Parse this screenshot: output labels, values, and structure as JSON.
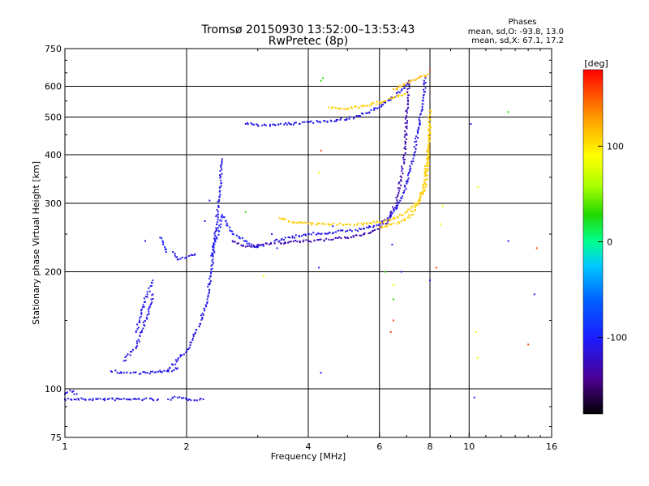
{
  "chart_data": {
    "type": "scatter",
    "title": "Tromsø 20150930 13:52:00–13:53:43",
    "subtitle": "RwPretec (8p)",
    "xlabel": "Frequency [MHz]",
    "ylabel": "Stationary phase Virtual Height [km]",
    "x_scale": "log",
    "y_scale": "log",
    "xlim": [
      1,
      16
    ],
    "ylim": [
      75,
      750
    ],
    "x_ticks": [
      1,
      2,
      4,
      6,
      8,
      10,
      16
    ],
    "x_tick_labels": [
      "1",
      "2",
      "4",
      "6",
      "8",
      "10",
      "16"
    ],
    "y_ticks": [
      75,
      100,
      200,
      300,
      400,
      500,
      600,
      750
    ],
    "y_tick_labels": [
      "75",
      "100",
      "200",
      "300",
      "400",
      "500",
      "600",
      "750"
    ],
    "grid": true,
    "phases_info": {
      "title": "Phases",
      "line_o": "mean, sd,O: -93.8, 13.0",
      "line_x": "mean, sd,X: 67.1, 17.2"
    },
    "colorbar": {
      "label": "[deg]",
      "range": [
        -180,
        180
      ],
      "ticks": [
        100,
        0,
        -100
      ],
      "tick_labels": [
        "100",
        "0",
        "-100"
      ]
    },
    "traces": [
      {
        "phase": -110,
        "points": [
          [
            1.0,
            94
          ],
          [
            1.2,
            94
          ],
          [
            1.5,
            94
          ],
          [
            1.7,
            94
          ]
        ]
      },
      {
        "phase": -110,
        "points": [
          [
            1.8,
            94
          ],
          [
            1.9,
            95
          ],
          [
            2.0,
            94
          ],
          [
            2.2,
            94
          ]
        ]
      },
      {
        "phase": -110,
        "points": [
          [
            1.0,
            97
          ],
          [
            1.03,
            99
          ],
          [
            1.07,
            97
          ]
        ]
      },
      {
        "phase": -110,
        "points": [
          [
            1.3,
            111
          ],
          [
            1.4,
            110
          ],
          [
            1.6,
            110
          ],
          [
            1.8,
            111
          ],
          [
            1.9,
            113
          ]
        ]
      },
      {
        "phase": -110,
        "points": [
          [
            1.4,
            118
          ],
          [
            1.5,
            128
          ],
          [
            1.55,
            140
          ],
          [
            1.6,
            155
          ],
          [
            1.65,
            175
          ]
        ]
      },
      {
        "phase": -105,
        "points": [
          [
            1.5,
            140
          ],
          [
            1.55,
            160
          ],
          [
            1.6,
            175
          ],
          [
            1.65,
            190
          ]
        ]
      },
      {
        "phase": -110,
        "points": [
          [
            1.85,
            225
          ],
          [
            1.9,
            215
          ],
          [
            2.0,
            218
          ],
          [
            2.1,
            222
          ]
        ]
      },
      {
        "phase": -100,
        "points": [
          [
            1.72,
            245
          ],
          [
            1.75,
            235
          ],
          [
            1.78,
            225
          ]
        ]
      },
      {
        "phase": -110,
        "points": [
          [
            1.8,
            112
          ],
          [
            2.0,
            125
          ],
          [
            2.15,
            145
          ],
          [
            2.25,
            170
          ],
          [
            2.3,
            200
          ],
          [
            2.35,
            240
          ],
          [
            2.38,
            280
          ],
          [
            2.42,
            330
          ],
          [
            2.45,
            390
          ]
        ]
      },
      {
        "phase": -100,
        "points": [
          [
            2.3,
            220
          ],
          [
            2.4,
            255
          ],
          [
            2.45,
            280
          ],
          [
            2.5,
            270
          ],
          [
            2.6,
            250
          ],
          [
            2.7,
            245
          ],
          [
            2.8,
            240
          ],
          [
            2.9,
            232
          ],
          [
            3.1,
            233
          ]
        ]
      },
      {
        "phase": -130,
        "points": [
          [
            2.6,
            240
          ],
          [
            2.8,
            232
          ],
          [
            3.0,
            235
          ],
          [
            3.5,
            238
          ],
          [
            4.0,
            240
          ],
          [
            4.5,
            242
          ],
          [
            5.0,
            245
          ],
          [
            5.5,
            250
          ],
          [
            6.0,
            258
          ],
          [
            6.3,
            270
          ],
          [
            6.6,
            300
          ],
          [
            6.8,
            350
          ],
          [
            6.95,
            420
          ],
          [
            7.0,
            500
          ],
          [
            7.05,
            560
          ],
          [
            7.1,
            620
          ]
        ]
      },
      {
        "phase": -110,
        "points": [
          [
            3.3,
            240
          ],
          [
            3.6,
            245
          ],
          [
            4.0,
            250
          ],
          [
            4.5,
            252
          ],
          [
            5.0,
            255
          ],
          [
            5.5,
            258
          ],
          [
            6.0,
            265
          ],
          [
            6.3,
            275
          ],
          [
            6.6,
            290
          ],
          [
            6.9,
            320
          ],
          [
            7.1,
            360
          ],
          [
            7.3,
            400
          ],
          [
            7.5,
            470
          ],
          [
            7.7,
            560
          ],
          [
            7.8,
            630
          ]
        ]
      },
      {
        "phase": -110,
        "points": [
          [
            2.8,
            480
          ],
          [
            3.0,
            477
          ],
          [
            3.3,
            478
          ],
          [
            3.6,
            480
          ],
          [
            4.0,
            485
          ],
          [
            4.4,
            488
          ],
          [
            4.8,
            492
          ],
          [
            5.2,
            500
          ],
          [
            5.6,
            512
          ],
          [
            6.0,
            530
          ],
          [
            6.4,
            555
          ],
          [
            6.8,
            585
          ],
          [
            7.1,
            610
          ]
        ]
      },
      {
        "phase": 110,
        "points": [
          [
            3.4,
            275
          ],
          [
            3.7,
            268
          ],
          [
            4.0,
            266
          ],
          [
            4.5,
            265
          ],
          [
            5.0,
            265
          ],
          [
            5.5,
            266
          ],
          [
            6.0,
            268
          ],
          [
            6.4,
            272
          ],
          [
            6.8,
            280
          ],
          [
            7.2,
            292
          ],
          [
            7.5,
            305
          ],
          [
            7.7,
            330
          ],
          [
            7.85,
            380
          ],
          [
            7.95,
            440
          ],
          [
            8.0,
            520
          ]
        ]
      },
      {
        "phase": 110,
        "points": [
          [
            6.0,
            260
          ],
          [
            6.4,
            265
          ],
          [
            6.8,
            270
          ],
          [
            7.2,
            280
          ],
          [
            7.5,
            300
          ],
          [
            7.8,
            330
          ],
          [
            7.95,
            400
          ],
          [
            8.0,
            480
          ]
        ]
      },
      {
        "phase": 110,
        "points": [
          [
            4.5,
            530
          ],
          [
            5.0,
            525
          ],
          [
            5.5,
            535
          ],
          [
            6.0,
            545
          ],
          [
            6.5,
            560
          ],
          [
            7.0,
            575
          ]
        ]
      },
      {
        "phase": 120,
        "points": [
          [
            6.5,
            590
          ],
          [
            6.8,
            600
          ],
          [
            7.0,
            612
          ],
          [
            7.5,
            630
          ],
          [
            7.9,
            645
          ]
        ]
      }
    ],
    "scattered": [
      {
        "phase": -100,
        "points": [
          [
            1.58,
            240
          ],
          [
            2.22,
            270
          ],
          [
            2.28,
            305
          ],
          [
            3.25,
            250
          ],
          [
            3.35,
            230
          ],
          [
            4.25,
            205
          ],
          [
            4.3,
            110
          ],
          [
            4.6,
            262
          ],
          [
            6.45,
            235
          ],
          [
            6.8,
            200
          ],
          [
            8.0,
            190
          ],
          [
            10.3,
            95
          ],
          [
            12.5,
            240
          ],
          [
            14.5,
            175
          ],
          [
            10.1,
            480
          ]
        ]
      },
      {
        "phase": 30,
        "points": [
          [
            4.3,
            620
          ],
          [
            4.35,
            630
          ],
          [
            6.2,
            200
          ],
          [
            6.5,
            170
          ],
          [
            12.5,
            515
          ],
          [
            2.8,
            285
          ]
        ]
      },
      {
        "phase": 90,
        "points": [
          [
            4.25,
            360
          ],
          [
            6.5,
            185
          ],
          [
            8.5,
            265
          ],
          [
            8.6,
            295
          ],
          [
            10.5,
            330
          ],
          [
            10.4,
            140
          ],
          [
            10.5,
            120
          ],
          [
            3.1,
            195
          ]
        ]
      },
      {
        "phase": 160,
        "points": [
          [
            4.3,
            410
          ],
          [
            6.5,
            150
          ],
          [
            6.4,
            140
          ],
          [
            8.3,
            205
          ],
          [
            14.0,
            130
          ],
          [
            14.7,
            230
          ],
          [
            8.0,
            660
          ]
        ]
      }
    ]
  }
}
